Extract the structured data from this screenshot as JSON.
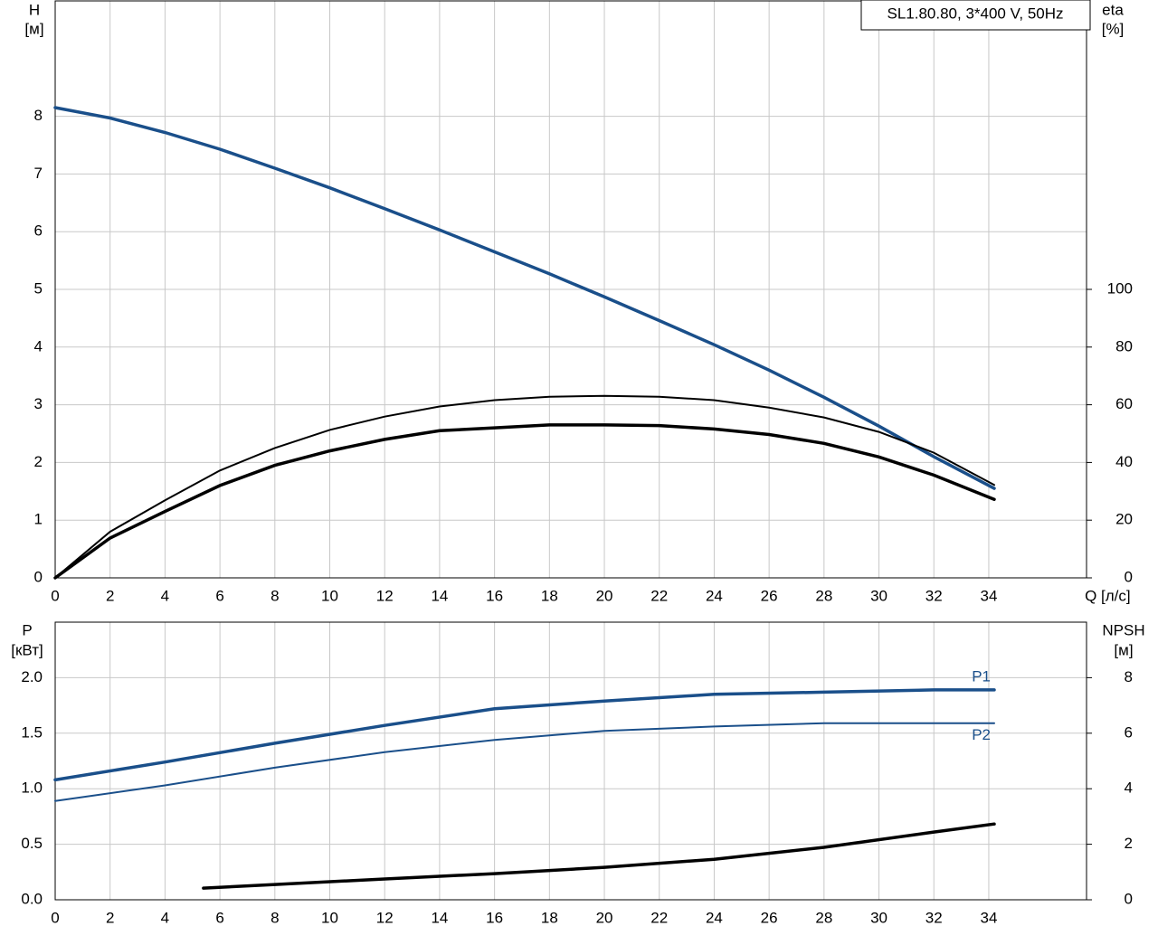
{
  "chart_data": [
    {
      "type": "line",
      "title": "SL1.80.80, 3*400 V, 50Hz",
      "x_label": "Q [л/с]",
      "y_label": [
        "H",
        "[м]"
      ],
      "y2_label": [
        "eta",
        "[%]"
      ],
      "xlim": [
        0,
        37.56
      ],
      "xticks": [
        0,
        2,
        4,
        6,
        8,
        10,
        12,
        14,
        16,
        18,
        20,
        22,
        24,
        26,
        28,
        30,
        32,
        34
      ],
      "ylim": [
        0,
        10
      ],
      "yticks": [
        0,
        1,
        2,
        3,
        4,
        5,
        6,
        7,
        8
      ],
      "y2lim": [
        0,
        200
      ],
      "y2ticks": [
        0,
        20,
        40,
        60,
        80,
        100
      ],
      "grid": true,
      "series": [
        {
          "color": "#1a4f8a",
          "width": 3.5,
          "x": [
            0,
            2,
            4,
            6,
            8,
            10,
            12,
            14,
            16,
            18,
            20,
            22,
            24,
            26,
            28,
            30,
            32,
            34.2
          ],
          "values": [
            8.15,
            7.97,
            7.72,
            7.43,
            7.1,
            6.76,
            6.4,
            6.03,
            5.65,
            5.27,
            4.87,
            4.46,
            4.04,
            3.6,
            3.13,
            2.63,
            2.1,
            1.55
          ]
        },
        {
          "color": "#000000",
          "width": 2,
          "axis": "y2",
          "x": [
            0,
            2,
            4,
            6,
            8,
            10,
            12,
            14,
            16,
            18,
            20,
            22,
            24,
            26,
            28,
            30,
            32,
            34.2
          ],
          "values": [
            0,
            16,
            26.9,
            37.2,
            45,
            51.3,
            55.9,
            59.4,
            61.6,
            62.8,
            63.1,
            62.8,
            61.6,
            59,
            55.6,
            50.6,
            43.4,
            32.2
          ]
        },
        {
          "color": "#000000",
          "width": 3.5,
          "axis": "y2",
          "x": [
            0,
            2,
            4,
            6,
            8,
            10,
            12,
            14,
            16,
            18,
            20,
            22,
            24,
            26,
            28,
            30,
            32,
            34.2
          ],
          "values": [
            0,
            13.8,
            23,
            32,
            39,
            44,
            48,
            51,
            52,
            53,
            53,
            52.8,
            51.6,
            49.7,
            46.6,
            41.9,
            35.6,
            27.2
          ]
        }
      ]
    },
    {
      "type": "line",
      "y_label": [
        "P",
        "[кВт]"
      ],
      "y2_label": [
        "NPSH",
        "[м]"
      ],
      "xlim": [
        0,
        37.56
      ],
      "xticks": [
        0,
        2,
        4,
        6,
        8,
        10,
        12,
        14,
        16,
        18,
        20,
        22,
        24,
        26,
        28,
        30,
        32,
        34
      ],
      "ylim": [
        0,
        2.5
      ],
      "yticks": [
        {
          "value": 0,
          "label": "0.0"
        },
        0.5,
        {
          "value": 1,
          "label": "1.0"
        },
        1.5,
        {
          "value": 2,
          "label": "2.0"
        }
      ],
      "y2lim": [
        0,
        10
      ],
      "y2ticks": [
        0,
        2,
        4,
        6,
        8
      ],
      "grid": true,
      "series": [
        {
          "name": "P1",
          "color": "#1a4f8a",
          "width": 3.5,
          "x": [
            0,
            4,
            8,
            12,
            16,
            20,
            24,
            28,
            32,
            34.2
          ],
          "values": [
            1.08,
            1.24,
            1.41,
            1.57,
            1.72,
            1.79,
            1.85,
            1.87,
            1.89,
            1.89
          ]
        },
        {
          "name": "P2",
          "color": "#1a4f8a",
          "width": 2,
          "x": [
            0,
            4,
            8,
            12,
            16,
            20,
            24,
            28,
            32,
            34.2
          ],
          "values": [
            0.89,
            1.03,
            1.19,
            1.33,
            1.44,
            1.52,
            1.56,
            1.59,
            1.59,
            1.59
          ]
        },
        {
          "color": "#000000",
          "width": 3.5,
          "axis": "y2",
          "x": [
            5.4,
            8,
            12,
            16,
            20,
            24,
            28,
            32,
            34.2
          ],
          "values": [
            0.42,
            0.55,
            0.75,
            0.94,
            1.17,
            1.46,
            1.89,
            2.44,
            2.73
          ]
        }
      ]
    }
  ]
}
